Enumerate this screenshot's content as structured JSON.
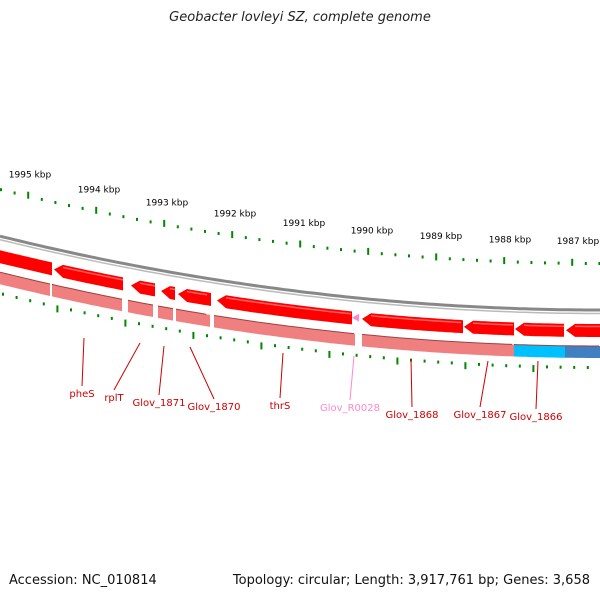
{
  "title": "Geobacter lovleyi SZ, complete genome",
  "accession": "Accession: NC_010814",
  "topology": "Topology: circular; Length: 3,917,761 bp; Genes: 3,658",
  "colors": {
    "gene_forward": "#ff0000",
    "gene_lowband": "#f08080",
    "gene_rrna": "#ff88cc",
    "gene_cyan": "#00c0ff",
    "gene_blue": "#4080c0",
    "ruler_tick": "#008800",
    "label_gene": "#cc0000",
    "label_rrna": "#ff88cc",
    "backbone": "#888888"
  },
  "ruler": {
    "labels": [
      "1995 kbp",
      "1994 kbp",
      "1993 kbp",
      "1992 kbp",
      "1991 kbp",
      "1990 kbp",
      "1989 kbp",
      "1988 kbp",
      "1987 kbp"
    ]
  },
  "genes": [
    {
      "label": "pheS",
      "type": "cds"
    },
    {
      "label": "rplT",
      "type": "cds"
    },
    {
      "label": "Glov_1871",
      "type": "cds"
    },
    {
      "label": "Glov_1870",
      "type": "cds"
    },
    {
      "label": "thrS",
      "type": "cds"
    },
    {
      "label": "Glov_R0028",
      "type": "rrna"
    },
    {
      "label": "Glov_1868",
      "type": "cds"
    },
    {
      "label": "Glov_1867",
      "type": "cds"
    },
    {
      "label": "Glov_1866",
      "type": "cds"
    }
  ]
}
